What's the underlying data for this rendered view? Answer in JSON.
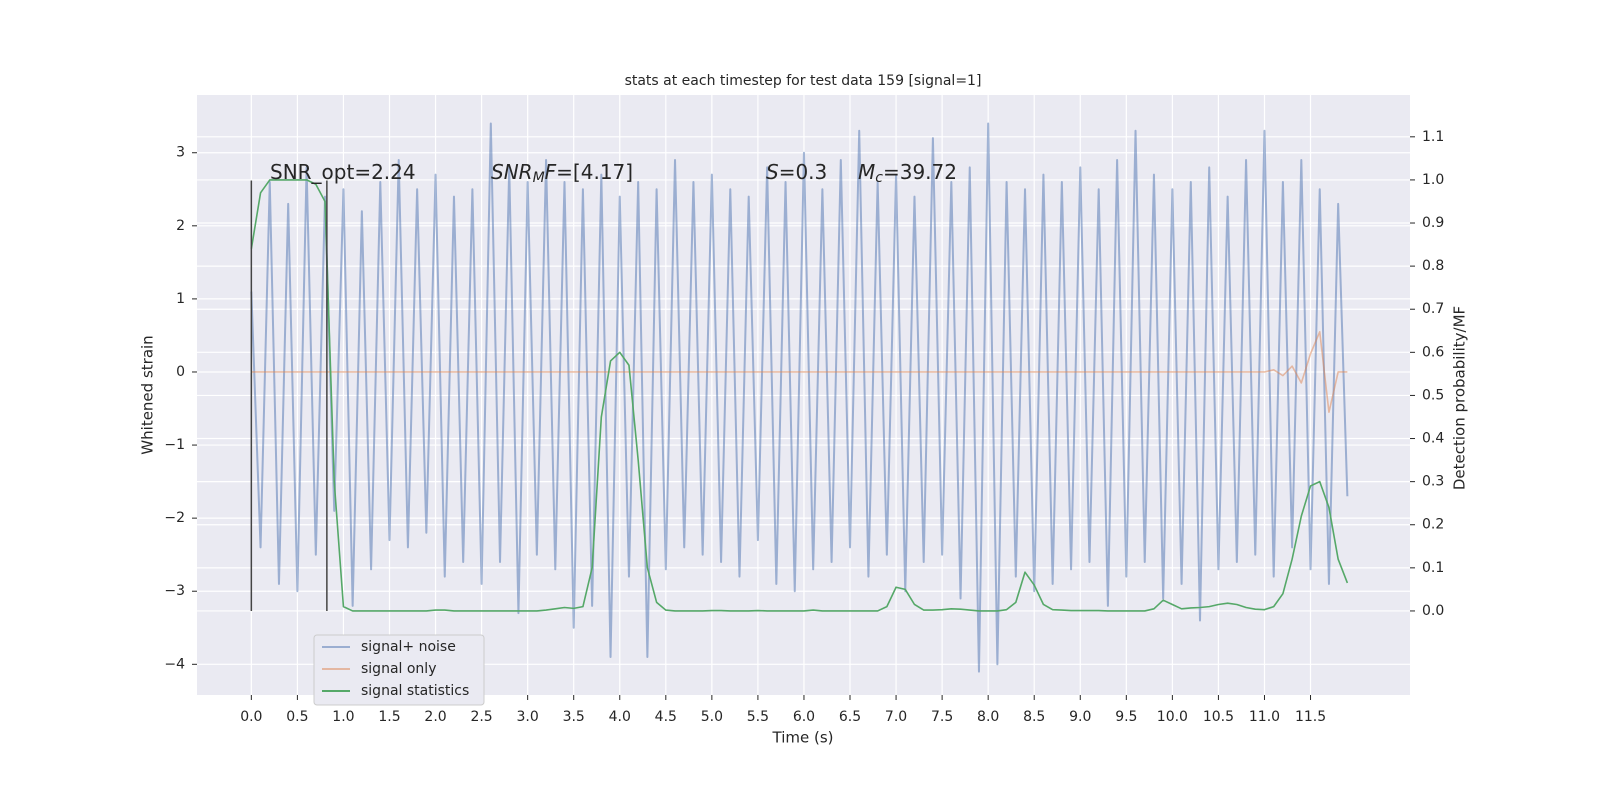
{
  "chart_data": {
    "type": "line",
    "title": "stats at each timestep for test data 159 [signal=1]",
    "xlabel": "Time (s)",
    "ylabel": "Whitened strain",
    "y2label": "Detection probability/MF",
    "x": [
      0,
      0.1,
      0.2,
      0.3,
      0.4,
      0.5,
      0.6,
      0.7,
      0.8,
      0.9,
      1,
      1.1,
      1.2,
      1.3,
      1.4,
      1.5,
      1.6,
      1.7,
      1.8,
      1.9,
      2,
      2.1,
      2.2,
      2.3,
      2.4,
      2.5,
      2.6,
      2.7,
      2.8,
      2.9,
      3,
      3.1,
      3.2,
      3.3,
      3.4,
      3.5,
      3.6,
      3.7,
      3.8,
      3.9,
      4,
      4.1,
      4.2,
      4.3,
      4.4,
      4.5,
      4.6,
      4.7,
      4.8,
      4.9,
      5,
      5.1,
      5.2,
      5.3,
      5.4,
      5.5,
      5.6,
      5.7,
      5.8,
      5.9,
      6,
      6.1,
      6.2,
      6.3,
      6.4,
      6.5,
      6.6,
      6.7,
      6.8,
      6.9,
      7,
      7.1,
      7.2,
      7.3,
      7.4,
      7.5,
      7.6,
      7.7,
      7.8,
      7.9,
      8,
      8.1,
      8.2,
      8.3,
      8.4,
      8.5,
      8.6,
      8.7,
      8.8,
      8.9,
      9,
      9.1,
      9.2,
      9.3,
      9.4,
      9.5,
      9.6,
      9.7,
      9.8,
      9.9,
      10,
      10.1,
      10.2,
      10.3,
      10.4,
      10.5,
      10.6,
      10.7,
      10.8,
      10.9,
      11,
      11.1,
      11.2,
      11.3,
      11.4,
      11.5,
      11.6,
      11.7,
      11.8,
      11.9
    ],
    "series": [
      {
        "name": "signal+ noise",
        "color": "#4c72b0",
        "opacity": 0.5,
        "values": [
          1.1,
          -2.4,
          2.6,
          -2.9,
          2.3,
          -3.0,
          2.8,
          -2.5,
          2.4,
          -1.9,
          2.5,
          -3.2,
          2.2,
          -2.7,
          2.6,
          -2.3,
          2.9,
          -2.4,
          2.5,
          -2.2,
          2.7,
          -2.8,
          2.4,
          -2.6,
          2.5,
          -2.9,
          3.4,
          -2.6,
          2.8,
          -3.3,
          2.6,
          -2.5,
          2.9,
          -2.7,
          2.6,
          -3.5,
          2.5,
          -3.2,
          2.7,
          -3.9,
          2.4,
          -2.8,
          2.6,
          -3.9,
          2.5,
          -2.7,
          2.9,
          -2.4,
          2.6,
          -2.5,
          2.7,
          -2.6,
          2.5,
          -2.8,
          2.4,
          -2.3,
          2.8,
          -2.9,
          2.6,
          -3.0,
          3.0,
          -2.7,
          2.5,
          -2.6,
          2.9,
          -2.4,
          3.3,
          -2.8,
          2.6,
          -2.5,
          2.7,
          -3.0,
          2.4,
          -2.6,
          3.2,
          -2.5,
          2.6,
          -3.1,
          2.8,
          -4.1,
          3.4,
          -4.0,
          2.6,
          -2.8,
          2.5,
          -3.0,
          2.7,
          -2.9,
          2.6,
          -2.7,
          2.8,
          -2.6,
          2.5,
          -3.2,
          2.9,
          -2.8,
          3.3,
          -2.6,
          2.7,
          -3.1,
          2.5,
          -2.9,
          2.6,
          -3.4,
          2.8,
          -2.7,
          2.4,
          -2.6,
          2.9,
          -2.5,
          3.3,
          -2.8,
          2.6,
          -2.4,
          2.9,
          -2.7,
          2.5,
          -2.9,
          2.3,
          -1.7
        ]
      },
      {
        "name": "signal only",
        "color": "#dd8452",
        "opacity": 0.5,
        "values": [
          0,
          0,
          0,
          0,
          0,
          0,
          0,
          0,
          0,
          0,
          0,
          0,
          0,
          0,
          0,
          0,
          0,
          0,
          0,
          0,
          0,
          0,
          0,
          0,
          0,
          0,
          0,
          0,
          0,
          0,
          0,
          0,
          0,
          0,
          0,
          0,
          0,
          0,
          0,
          0,
          0,
          0,
          0,
          0,
          0,
          0,
          0,
          0,
          0,
          0,
          0,
          0,
          0,
          0,
          0,
          0,
          0,
          0,
          0,
          0,
          0,
          0,
          0,
          0,
          0,
          0,
          0,
          0,
          0,
          0,
          0,
          0,
          0,
          0,
          0,
          0,
          0,
          0,
          0,
          0,
          0,
          0,
          0,
          0,
          0,
          0,
          0,
          0,
          0,
          0,
          0,
          0,
          0,
          0,
          0,
          0,
          0,
          0,
          0,
          0,
          0,
          0,
          0,
          0,
          0,
          0,
          0,
          0,
          0,
          0,
          0,
          0.03,
          -0.05,
          0.08,
          -0.15,
          0.25,
          0.55,
          -0.55,
          0,
          0
        ]
      },
      {
        "name": "signal statistics",
        "color": "#55a868",
        "opacity": 1,
        "axis": "y2",
        "values": [
          0.84,
          0.97,
          1.0,
          1.0,
          1.0,
          1.0,
          1.0,
          0.99,
          0.95,
          0.3,
          0.01,
          0,
          0,
          0,
          0,
          0,
          0,
          0,
          0,
          0,
          0.002,
          0.002,
          0,
          0,
          0,
          0,
          0,
          0,
          0,
          0,
          0,
          0,
          0.002,
          0.005,
          0.008,
          0.006,
          0.01,
          0.1,
          0.45,
          0.58,
          0.6,
          0.57,
          0.35,
          0.1,
          0.02,
          0.002,
          0,
          0,
          0,
          0,
          0.001,
          0.001,
          0,
          0,
          0,
          0.001,
          0,
          0,
          0,
          0,
          0,
          0.002,
          0,
          0,
          0,
          0,
          0,
          0,
          0,
          0.01,
          0.055,
          0.05,
          0.015,
          0.002,
          0.002,
          0.003,
          0.005,
          0.004,
          0.002,
          0,
          0,
          0,
          0.003,
          0.02,
          0.09,
          0.06,
          0.015,
          0.003,
          0.002,
          0.001,
          0.001,
          0.001,
          0.001,
          0,
          0,
          0,
          0,
          0,
          0.005,
          0.025,
          0.015,
          0.005,
          0.007,
          0.008,
          0.01,
          0.015,
          0.018,
          0.015,
          0.008,
          0.004,
          0.003,
          0.01,
          0.04,
          0.12,
          0.22,
          0.29,
          0.3,
          0.24,
          0.12,
          0.065
        ]
      }
    ],
    "vlines": {
      "x": [
        0,
        0.82
      ],
      "ymin": -3.27,
      "ymax": 2.62,
      "color": "#444444"
    },
    "annotations": [
      {
        "parts": [
          {
            "text": "SNR_opt=2.24"
          }
        ]
      },
      {
        "parts": [
          {
            "text": "SNR",
            "italic": true
          },
          {
            "text": "M",
            "italic": true,
            "sub": true
          },
          {
            "text": "F",
            "italic": true
          },
          {
            "text": "=[4.17]"
          }
        ]
      },
      {
        "parts": [
          {
            "text": "S",
            "italic": true
          },
          {
            "text": "=0.3"
          }
        ]
      },
      {
        "parts": [
          {
            "text": "M",
            "italic": true
          },
          {
            "text": "c",
            "italic": true,
            "sub": true
          },
          {
            "text": "=39.72"
          }
        ]
      }
    ],
    "xlim": [
      -0.59,
      12.58
    ],
    "ylim": [
      -4.42,
      3.79
    ],
    "y2lim": [
      -0.195,
      1.197
    ],
    "xticks": [
      {
        "value": 0,
        "label": "0.0"
      },
      0.5,
      {
        "value": 1,
        "label": "1.0"
      },
      1.5,
      {
        "value": 2,
        "label": "2.0"
      },
      2.5,
      {
        "value": 3,
        "label": "3.0"
      },
      3.5,
      {
        "value": 4,
        "label": "4.0"
      },
      4.5,
      {
        "value": 5,
        "label": "5.0"
      },
      5.5,
      {
        "value": 6,
        "label": "6.0"
      },
      6.5,
      {
        "value": 7,
        "label": "7.0"
      },
      7.5,
      {
        "value": 8,
        "label": "8.0"
      },
      8.5,
      {
        "value": 9,
        "label": "9.0"
      },
      9.5,
      {
        "value": 10,
        "label": "10.0"
      },
      10.5,
      {
        "value": 11,
        "label": "11.0"
      },
      11.5
    ],
    "yticks": [
      {
        "value": -4,
        "label": "−4"
      },
      {
        "value": -3,
        "label": "−3"
      },
      {
        "value": -2,
        "label": "−2"
      },
      {
        "value": -1,
        "label": "−1"
      },
      0,
      1,
      2,
      3
    ],
    "y2ticks": [
      {
        "value": 0,
        "label": "0.0"
      },
      0.1,
      0.2,
      0.3,
      0.4,
      0.5,
      0.6,
      0.7,
      0.8,
      0.9,
      {
        "value": 1,
        "label": "1.0"
      },
      1.1
    ],
    "grid": true,
    "legend": "lower left"
  }
}
